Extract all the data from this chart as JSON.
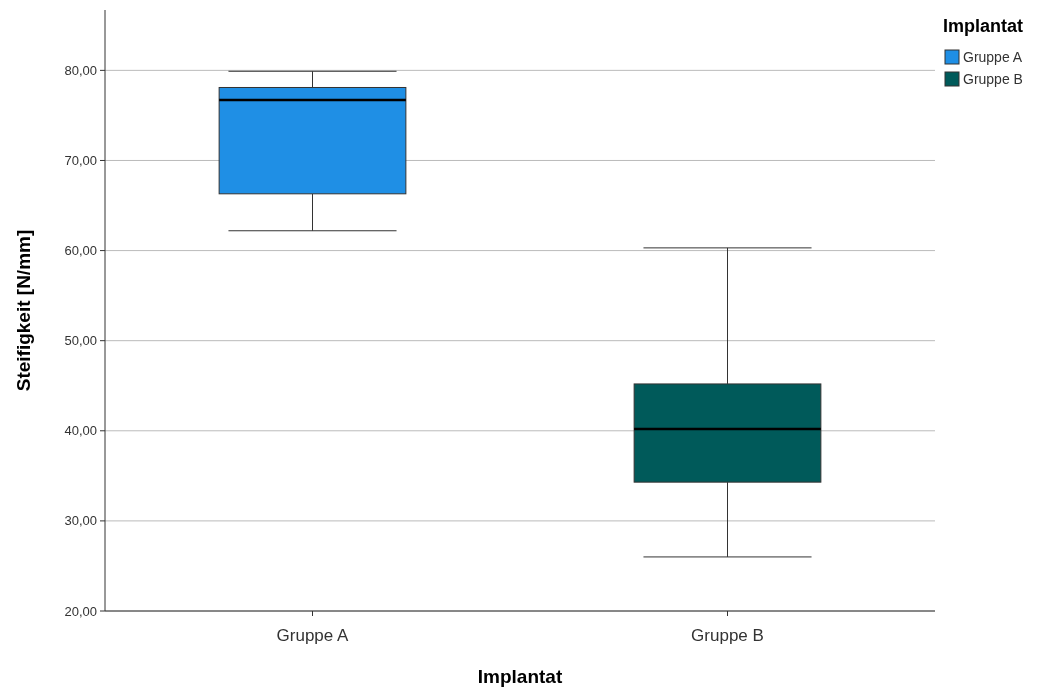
{
  "chart_data": {
    "type": "box",
    "xlabel": "Implantat",
    "ylabel": "Steifigkeit [N/mm]",
    "legend_title": "Implantat",
    "legend": "top right",
    "grid": "y",
    "categories": [
      "Gruppe A",
      "Gruppe B"
    ],
    "series": [
      {
        "name": "Gruppe A",
        "color": "#1f8fe5",
        "boxes": [
          {
            "low": 62.2,
            "q1": 66.3,
            "median": 76.7,
            "q3": 78.1,
            "high": 79.9
          },
          null
        ]
      },
      {
        "name": "Gruppe B",
        "color": "#005a5a",
        "boxes": [
          null,
          {
            "low": 26.0,
            "q1": 34.3,
            "median": 40.2,
            "q3": 45.2,
            "high": 60.3
          }
        ]
      }
    ],
    "ylim": [
      20,
      86.7
    ],
    "yticks": [
      {
        "value": 20,
        "label": "20,00"
      },
      {
        "value": 30,
        "label": "30,00"
      },
      {
        "value": 40,
        "label": "40,00"
      },
      {
        "value": 50,
        "label": "50,00"
      },
      {
        "value": 60,
        "label": "60,00"
      },
      {
        "value": 70,
        "label": "70,00"
      },
      {
        "value": 80,
        "label": "80,00"
      }
    ]
  }
}
